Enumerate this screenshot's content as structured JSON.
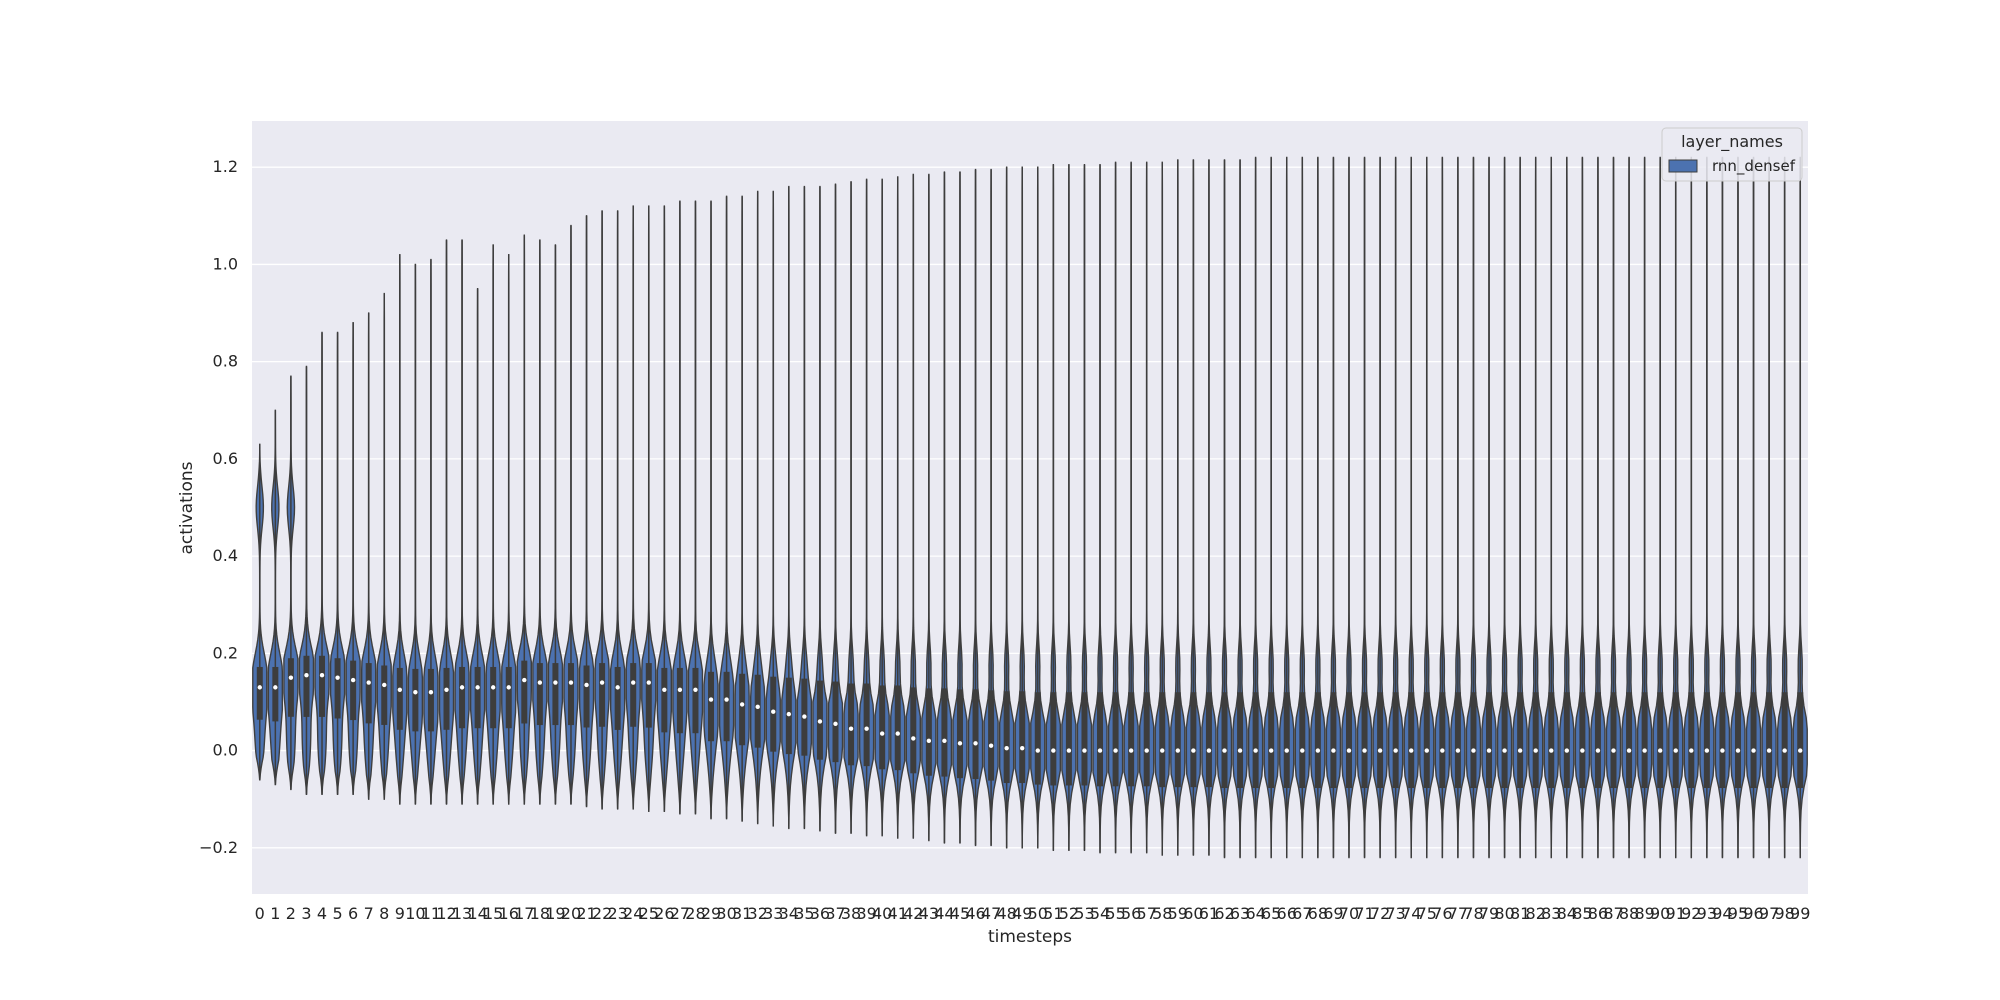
{
  "chart_data": {
    "type": "violin",
    "title": "",
    "xlabel": "timesteps",
    "ylabel": "activations",
    "ylim": [
      -0.295,
      1.295
    ],
    "yticks": [
      -0.2,
      0.0,
      0.2,
      0.4,
      0.6,
      0.8,
      1.0,
      1.2
    ],
    "ytick_labels": [
      "−0.2",
      "0.0",
      "0.2",
      "0.4",
      "0.6",
      "0.8",
      "1.0",
      "1.2"
    ],
    "grid": true,
    "legend": {
      "title": "layer_names",
      "placement": "top-right",
      "entries": [
        {
          "label": "rnn_densef",
          "color": "#4c72b0"
        }
      ]
    },
    "series": [
      {
        "name": "rnn_densef",
        "color": "#4c72b0",
        "categories": [
          "0",
          "1",
          "2",
          "3",
          "4",
          "5",
          "6",
          "7",
          "8",
          "9",
          "10",
          "11",
          "12",
          "13",
          "14",
          "15",
          "16",
          "17",
          "18",
          "19",
          "20",
          "21",
          "22",
          "23",
          "24",
          "25",
          "26",
          "27",
          "28",
          "29",
          "30",
          "31",
          "32",
          "33",
          "34",
          "35",
          "36",
          "37",
          "38",
          "39",
          "40",
          "41",
          "42",
          "43",
          "44",
          "45",
          "46",
          "47",
          "48",
          "49",
          "50",
          "51",
          "52",
          "53",
          "54",
          "55",
          "56",
          "57",
          "58",
          "59",
          "60",
          "61",
          "62",
          "63",
          "64",
          "65",
          "66",
          "67",
          "68",
          "69",
          "70",
          "71",
          "72",
          "73",
          "74",
          "75",
          "76",
          "77",
          "78",
          "79",
          "80",
          "81",
          "82",
          "83",
          "84",
          "85",
          "86",
          "87",
          "88",
          "89",
          "90",
          "91",
          "92",
          "93",
          "94",
          "95",
          "96",
          "97",
          "98",
          "99"
        ],
        "max": [
          0.63,
          0.7,
          0.77,
          0.79,
          0.86,
          0.86,
          0.88,
          0.9,
          0.94,
          1.02,
          1.0,
          1.01,
          1.05,
          1.05,
          0.95,
          1.04,
          1.02,
          1.06,
          1.05,
          1.04,
          1.08,
          1.1,
          1.11,
          1.11,
          1.12,
          1.12,
          1.12,
          1.13,
          1.13,
          1.13,
          1.14,
          1.14,
          1.15,
          1.15,
          1.16,
          1.16,
          1.16,
          1.165,
          1.17,
          1.175,
          1.175,
          1.18,
          1.185,
          1.185,
          1.19,
          1.19,
          1.195,
          1.195,
          1.2,
          1.2,
          1.2,
          1.205,
          1.205,
          1.205,
          1.205,
          1.21,
          1.21,
          1.21,
          1.21,
          1.215,
          1.215,
          1.215,
          1.215,
          1.215,
          1.22,
          1.22,
          1.22,
          1.22,
          1.22,
          1.22,
          1.22,
          1.22,
          1.22,
          1.22,
          1.22,
          1.22,
          1.22,
          1.22,
          1.22,
          1.22,
          1.22,
          1.22,
          1.22,
          1.22,
          1.22,
          1.22,
          1.22,
          1.22,
          1.22,
          1.22,
          1.22,
          1.22,
          1.22,
          1.22,
          1.22,
          1.22,
          1.22,
          1.22,
          1.22,
          1.22
        ],
        "min": [
          -0.06,
          -0.07,
          -0.08,
          -0.09,
          -0.09,
          -0.09,
          -0.09,
          -0.1,
          -0.1,
          -0.11,
          -0.11,
          -0.11,
          -0.11,
          -0.11,
          -0.11,
          -0.11,
          -0.11,
          -0.11,
          -0.11,
          -0.11,
          -0.11,
          -0.115,
          -0.12,
          -0.12,
          -0.12,
          -0.125,
          -0.125,
          -0.13,
          -0.13,
          -0.14,
          -0.14,
          -0.145,
          -0.15,
          -0.155,
          -0.16,
          -0.16,
          -0.165,
          -0.17,
          -0.17,
          -0.175,
          -0.175,
          -0.18,
          -0.18,
          -0.185,
          -0.19,
          -0.19,
          -0.195,
          -0.195,
          -0.2,
          -0.2,
          -0.2,
          -0.205,
          -0.205,
          -0.205,
          -0.21,
          -0.21,
          -0.21,
          -0.21,
          -0.215,
          -0.215,
          -0.215,
          -0.215,
          -0.22,
          -0.22,
          -0.22,
          -0.22,
          -0.22,
          -0.22,
          -0.22,
          -0.22,
          -0.22,
          -0.22,
          -0.22,
          -0.22,
          -0.22,
          -0.22,
          -0.22,
          -0.22,
          -0.22,
          -0.22,
          -0.22,
          -0.22,
          -0.22,
          -0.22,
          -0.22,
          -0.22,
          -0.22,
          -0.22,
          -0.22,
          -0.22,
          -0.22,
          -0.22,
          -0.22,
          -0.22,
          -0.22,
          -0.22,
          -0.22,
          -0.22,
          -0.22,
          -0.22
        ],
        "median": [
          0.13,
          0.13,
          0.15,
          0.155,
          0.155,
          0.15,
          0.145,
          0.14,
          0.135,
          0.125,
          0.12,
          0.12,
          0.125,
          0.13,
          0.13,
          0.13,
          0.13,
          0.145,
          0.14,
          0.14,
          0.14,
          0.135,
          0.14,
          0.13,
          0.14,
          0.14,
          0.125,
          0.125,
          0.125,
          0.105,
          0.105,
          0.095,
          0.09,
          0.08,
          0.075,
          0.07,
          0.06,
          0.055,
          0.045,
          0.045,
          0.035,
          0.035,
          0.025,
          0.02,
          0.02,
          0.015,
          0.015,
          0.01,
          0.005,
          0.005,
          0.0,
          0.0,
          0.0,
          0.0,
          0.0,
          0.0,
          0.0,
          0.0,
          0.0,
          0.0,
          0.0,
          0.0,
          0.0,
          0.0,
          0.0,
          0.0,
          0.0,
          0.0,
          0.0,
          0.0,
          0.0,
          0.0,
          0.0,
          0.0,
          0.0,
          0.0,
          0.0,
          0.0,
          0.0,
          0.0,
          0.0,
          0.0,
          0.0,
          0.0,
          0.0,
          0.0,
          0.0,
          0.0,
          0.0,
          0.0,
          0.0,
          0.0,
          0.0,
          0.0,
          0.0,
          0.0,
          0.0,
          0.0,
          0.0,
          0.0
        ]
      }
    ]
  }
}
